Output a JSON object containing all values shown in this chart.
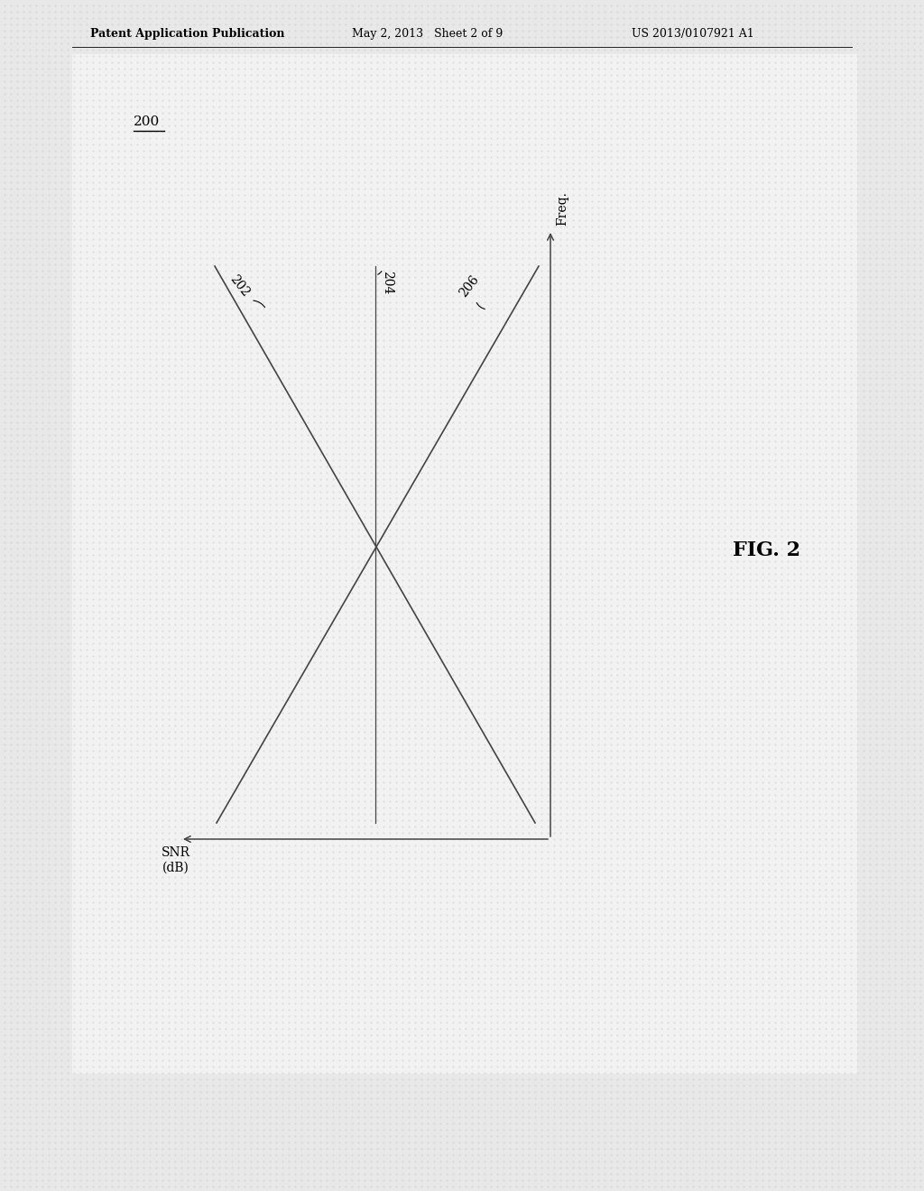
{
  "background_color": "#d8d8d8",
  "page_background": "#e8e8e8",
  "inner_bg": "#f2f2f2",
  "fig_label": "200",
  "fig_caption": "FIG. 2",
  "header_left": "Patent Application Publication",
  "header_mid": "May 2, 2013   Sheet 2 of 9",
  "header_right": "US 2013/0107921 A1",
  "y_axis_label": "Freq.",
  "x_axis_label_line1": "SNR",
  "x_axis_label_line2": "(dB)",
  "line202_label": "202",
  "line204_label": "204",
  "line206_label": "206",
  "line_color": "#444444",
  "text_color": "#000000",
  "line_width": 1.2,
  "axis_color": "#444444",
  "header_fontsize": 9,
  "label_fontsize": 10,
  "fig2_fontsize": 16,
  "fig200_fontsize": 11
}
